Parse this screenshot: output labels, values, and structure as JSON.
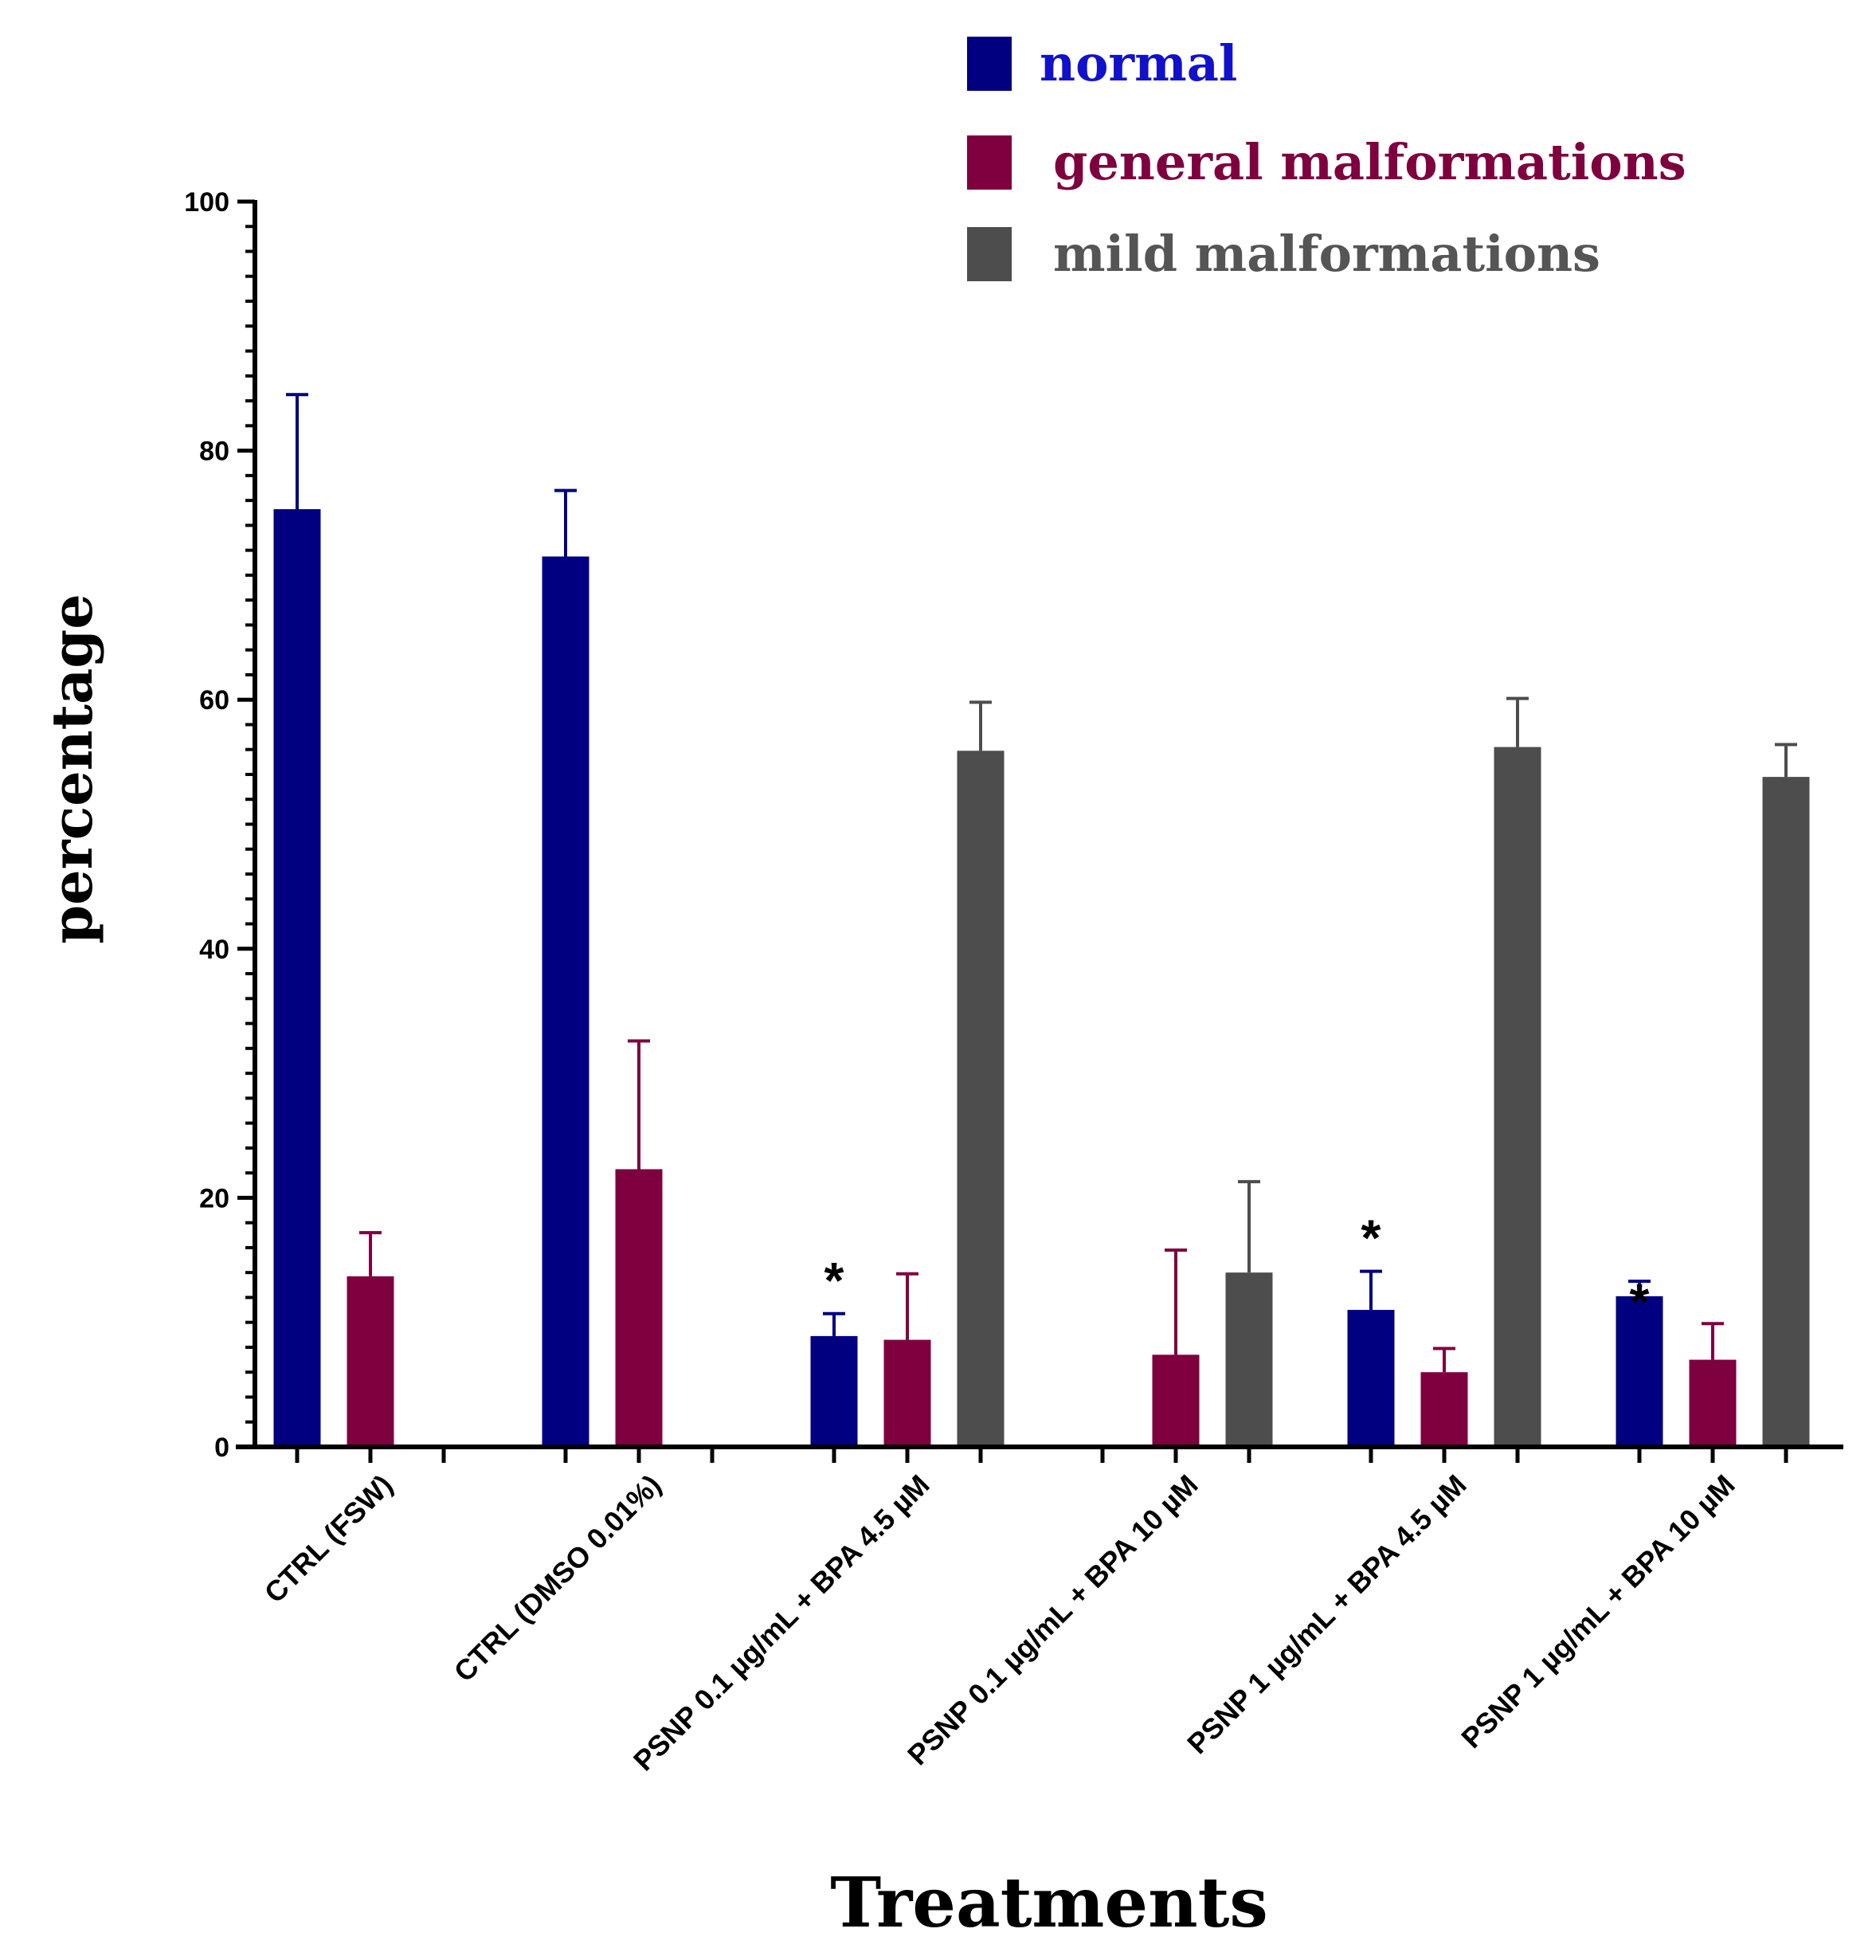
{
  "chart_data": {
    "type": "bar",
    "title": "",
    "xlabel": "Treatments",
    "ylabel": "percentage",
    "ylim": [
      0,
      100
    ],
    "yticks": [
      0,
      20,
      40,
      60,
      80,
      100
    ],
    "grid": false,
    "legend_position": "top-right",
    "categories": [
      "CTRL (FSW)",
      "CTRL (DMSO 0.01%)",
      "PSNP 0.1 µg/mL + BPA 4.5 µM",
      "PSNP 0.1 µg/mL + BPA 10 µM",
      "PSNP 1 µg/mL + BPA 4.5 µM",
      "PSNP 1 µg/mL + BPA 10 µM"
    ],
    "series": [
      {
        "name": "normal",
        "color": "#000080",
        "values": [
          75.3,
          71.5,
          8.9,
          0,
          11.0,
          12.1
        ],
        "errors": [
          9.2,
          5.3,
          1.8,
          0,
          3.1,
          1.2
        ]
      },
      {
        "name": "general malformations",
        "color": "#7f003f",
        "values": [
          13.7,
          22.3,
          8.6,
          7.4,
          6.0,
          7.0
        ],
        "errors": [
          3.5,
          10.3,
          5.3,
          8.4,
          1.9,
          2.9
        ]
      },
      {
        "name": "mild malformations",
        "color": "#4d4d4d",
        "values": [
          0,
          0,
          55.9,
          14.0,
          56.2,
          53.8
        ],
        "errors": [
          0,
          0,
          3.9,
          7.3,
          3.9,
          2.6
        ]
      }
    ],
    "annotations": [
      {
        "text": "*",
        "category_index": 2,
        "series_index": 0
      },
      {
        "text": "*",
        "category_index": 4,
        "series_index": 0
      },
      {
        "text": "*",
        "category_index": 5,
        "series_index": 0
      }
    ]
  }
}
